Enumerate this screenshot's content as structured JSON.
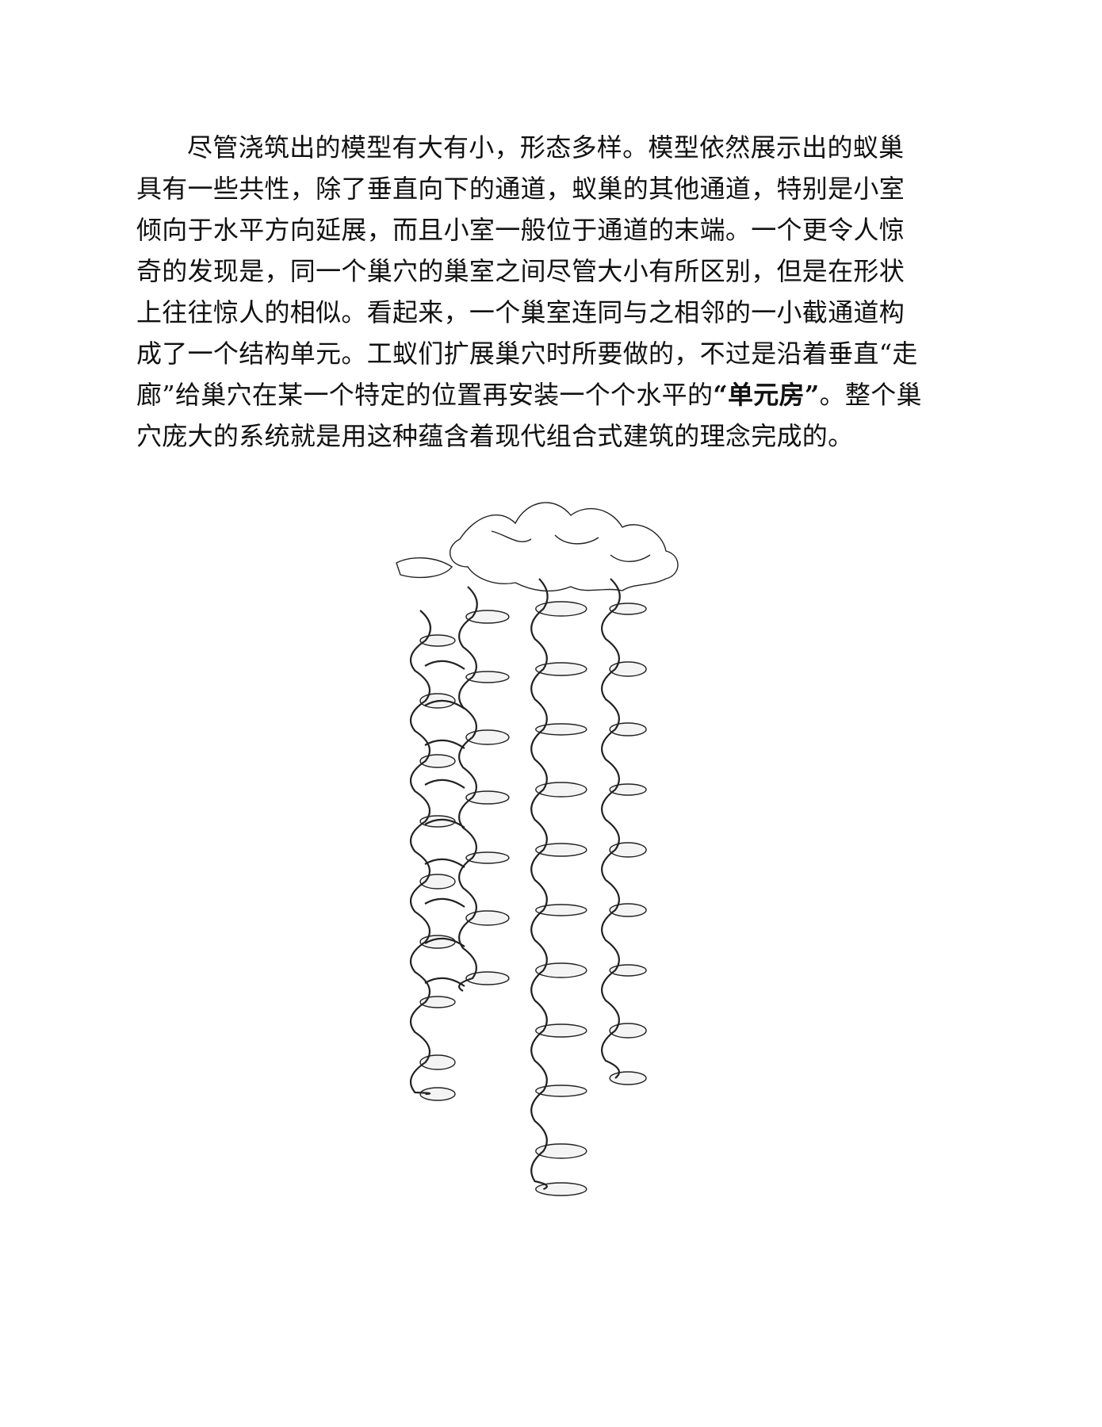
{
  "document": {
    "paragraph_lines": [
      "尽管浇筑出的模型有大有小，形态多样。模型依然展示出的蚁巢",
      "具有一些共性，除了垂直向下的通道，蚁巢的其他通道，特别是小室",
      "倾向于水平方向延展，而且小室一般位于通道的末端。一个更令人惊",
      "奇的发现是，同一个巢穴的巢室之间尽管大小有所区别，但是在形状",
      "上往往惊人的相似。看起来，一个巢室连同与之相邻的一小截通道构",
      "成了一个结构单元。工蚁们扩展巢穴时所要做的，不过是沿着垂直“走"
    ],
    "line7_before": "廊”给巢穴在某一个特定的位置再安装一个个水平的",
    "line7_bold": "“单元房”",
    "line7_after": "。整个巢",
    "line8": "穴庞大的系统就是用这种蕴含着现代组合式建筑的理念完成的。"
  },
  "figure": {
    "description_icon": "ant-nest-cast-illustration-icon"
  }
}
